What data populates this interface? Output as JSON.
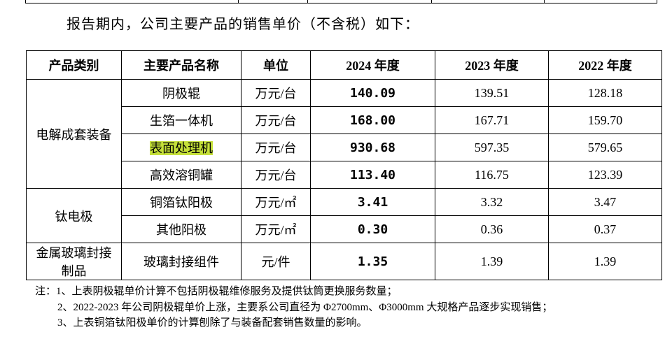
{
  "intro": "报告期内，公司主要产品的销售单价（不含税）如下：",
  "table": {
    "header": [
      "产品类别",
      "主要产品名称",
      "单位",
      "2024 年度",
      "2023 年度",
      "2022 年度"
    ],
    "groups": [
      {
        "name": "电解成套装备",
        "rows": [
          [
            "阴极辊",
            "万元/台",
            "140.09",
            "139.51",
            "128.18"
          ],
          [
            "生箔一体机",
            "万元/台",
            "168.00",
            "167.71",
            "159.70"
          ],
          [
            "表面处理机",
            "万元/台",
            "930.68",
            "597.35",
            "579.65"
          ],
          [
            "高效溶铜罐",
            "万元/台",
            "113.40",
            "116.75",
            "123.39"
          ]
        ]
      },
      {
        "name": "钛电极",
        "rows": [
          [
            "铜箔钛阳极",
            "万元/㎡",
            "3.41",
            "3.32",
            "3.47"
          ],
          [
            "其他阳极",
            "万元/㎡",
            "0.30",
            "0.36",
            "0.37"
          ]
        ]
      },
      {
        "name": "金属玻璃封接制品",
        "rows": [
          [
            "玻璃封接组件",
            "元/件",
            "1.35",
            "1.39",
            "1.39"
          ]
        ]
      }
    ]
  },
  "notes": {
    "label": "注：",
    "items": [
      "1、上表阴极辊单价计算不包括阴极辊维修服务及提供钛筒更换服务数量；",
      "2、2022-2023 年公司阴极辊单价上涨，主要系公司直径为 Φ2700mm、Φ3000mm 大规格产品逐步实现销售；",
      "3、上表铜箔钛阳极单价的计算刨除了与装备配套销售数量的影响。"
    ]
  }
}
